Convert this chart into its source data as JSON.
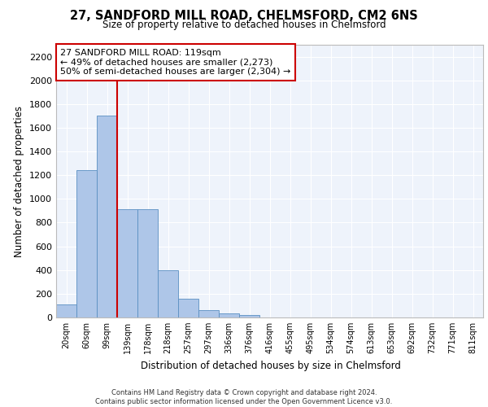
{
  "title1": "27, SANDFORD MILL ROAD, CHELMSFORD, CM2 6NS",
  "title2": "Size of property relative to detached houses in Chelmsford",
  "xlabel": "Distribution of detached houses by size in Chelmsford",
  "ylabel": "Number of detached properties",
  "bar_labels": [
    "20sqm",
    "60sqm",
    "99sqm",
    "139sqm",
    "178sqm",
    "218sqm",
    "257sqm",
    "297sqm",
    "336sqm",
    "376sqm",
    "416sqm",
    "455sqm",
    "495sqm",
    "534sqm",
    "574sqm",
    "613sqm",
    "653sqm",
    "692sqm",
    "732sqm",
    "771sqm",
    "811sqm"
  ],
  "bar_values": [
    110,
    1240,
    1700,
    910,
    910,
    400,
    155,
    65,
    35,
    20,
    0,
    0,
    0,
    0,
    0,
    0,
    0,
    0,
    0,
    0,
    0
  ],
  "bar_color": "#aec6e8",
  "bar_edge_color": "#5a8fc2",
  "background_color": "#eef3fb",
  "grid_color": "#ffffff",
  "vline_position": 2.5,
  "vline_color": "#cc0000",
  "annotation_text": "27 SANDFORD MILL ROAD: 119sqm\n← 49% of detached houses are smaller (2,273)\n50% of semi-detached houses are larger (2,304) →",
  "annotation_box_color": "#ffffff",
  "annotation_box_edge_color": "#cc0000",
  "ylim": [
    0,
    2300
  ],
  "yticks": [
    0,
    200,
    400,
    600,
    800,
    1000,
    1200,
    1400,
    1600,
    1800,
    2000,
    2200
  ],
  "footer_line1": "Contains HM Land Registry data © Crown copyright and database right 2024.",
  "footer_line2": "Contains public sector information licensed under the Open Government Licence v3.0."
}
